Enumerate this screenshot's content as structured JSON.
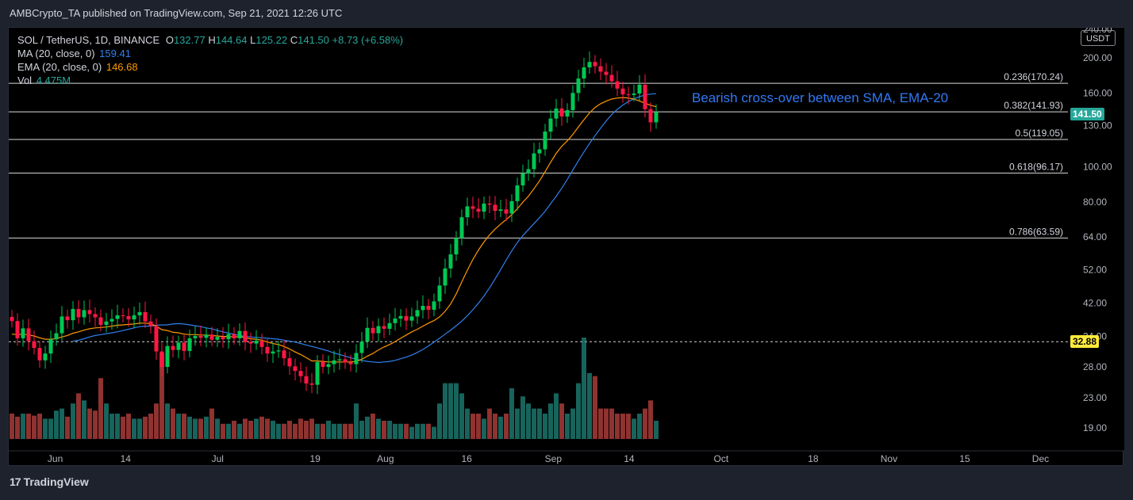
{
  "header": {
    "publisher_line": "AMBCrypto_TA published on TradingView.com, Sep 21, 2021 12:26 UTC"
  },
  "legend": {
    "symbol": "SOL / TetherUS, 1D, BINANCE",
    "o_label": "O",
    "o": "132.77",
    "h_label": "H",
    "h": "144.64",
    "l_label": "L",
    "l": "125.22",
    "c_label": "C",
    "c": "141.50",
    "change": "+8.73 (+6.58%)",
    "ma_label": "MA (20, close, 0)",
    "ma_value": "159.41",
    "ema_label": "EMA (20, close, 0)",
    "ema_value": "146.68",
    "vol_label": "Vol",
    "vol_value": "4.475M"
  },
  "annotation": "Bearish cross-over between SMA, EMA-20",
  "currency_box": "USDT",
  "last_price_tag": "141.50",
  "support_tag": "32.88",
  "footer": {
    "logo": "17",
    "brand": "TradingView"
  },
  "colors": {
    "up": "#26a69a",
    "down": "#ef5350",
    "candle_up": "#00c853",
    "candle_down": "#ff1744",
    "ma": "#2962ff",
    "ema": "#ff9800",
    "annotation": "#3179f5",
    "fib": "#ffffff"
  },
  "chart_data": {
    "type": "candlestick",
    "scale": "log",
    "y_ticks": [
      "240.00",
      "200.00",
      "160.00",
      "130.00",
      "100.00",
      "80.00",
      "64.00",
      "52.00",
      "42.00",
      "34.00",
      "28.00",
      "23.00",
      "19.00"
    ],
    "y_tick_values": [
      240,
      200,
      160,
      130,
      100,
      80,
      64,
      52,
      42,
      34,
      28,
      23,
      19
    ],
    "x_ticks": [
      "Jun",
      "14",
      "Jul",
      "19",
      "Aug",
      "16",
      "Sep",
      "14",
      "Oct",
      "18",
      "Nov",
      "15",
      "Dec"
    ],
    "fib_levels": [
      {
        "label": "0.236(170.24)",
        "value": 170.24
      },
      {
        "label": "0.382(141.93)",
        "value": 141.93
      },
      {
        "label": "0.5(119.05)",
        "value": 119.05
      },
      {
        "label": "0.618(96.17)",
        "value": 96.17
      },
      {
        "label": "0.786(63.59)",
        "value": 63.59
      }
    ],
    "support_line": 32.88,
    "closes": [
      37.5,
      33.6,
      35.8,
      33.0,
      31.6,
      29.2,
      30.5,
      33.4,
      34.7,
      38.6,
      37.7,
      40.5,
      38.4,
      40.2,
      39.2,
      38.4,
      36.6,
      37.4,
      38.0,
      38.9,
      38.7,
      37.9,
      38.9,
      39.7,
      37.4,
      36.3,
      30.9,
      28.0,
      32.0,
      31.2,
      32.7,
      31.0,
      33.6,
      34.1,
      33.7,
      34.4,
      33.3,
      33.9,
      33.4,
      34.5,
      33.6,
      35.2,
      32.8,
      32.5,
      33.1,
      31.8,
      30.5,
      30.9,
      31.1,
      29.6,
      28.1,
      27.3,
      26.4,
      25.2,
      25.0,
      28.9,
      28.0,
      28.5,
      29.2,
      29.4,
      28.8,
      28.5,
      30.6,
      32.9,
      35.9,
      34.7,
      36.3,
      35.7,
      37.0,
      38.1,
      38.7,
      37.6,
      38.6,
      40.2,
      41.3,
      40.3,
      42.5,
      47.0,
      52.4,
      57.3,
      63.6,
      72.6,
      77.8,
      76.6,
      75.2,
      79.2,
      78.6,
      75.6,
      76.3,
      74.3,
      80.4,
      88.9,
      96.0,
      98.6,
      109.0,
      111.8,
      125.2,
      136.0,
      145.0,
      137.8,
      143.5,
      160.1,
      175.5,
      188.4,
      195.0,
      189.8,
      183.3,
      179.5,
      172.4,
      164.6,
      158.6,
      158.0,
      159.5,
      168.7,
      144.4,
      132.8,
      141.5
    ],
    "opens": [
      38.5,
      37.5,
      33.6,
      35.8,
      33.0,
      31.6,
      29.2,
      30.5,
      33.4,
      34.7,
      38.6,
      37.7,
      40.5,
      38.4,
      40.2,
      39.2,
      38.4,
      36.6,
      37.4,
      38.0,
      38.9,
      38.7,
      37.9,
      38.9,
      39.7,
      37.4,
      36.3,
      30.9,
      28.0,
      32.0,
      31.2,
      32.7,
      31.0,
      33.6,
      34.1,
      33.7,
      34.4,
      33.3,
      33.9,
      33.4,
      34.5,
      33.6,
      35.2,
      32.8,
      32.5,
      33.1,
      31.8,
      30.5,
      30.9,
      31.1,
      29.6,
      28.1,
      27.3,
      26.4,
      25.2,
      25.0,
      28.9,
      28.0,
      28.5,
      29.2,
      29.4,
      28.8,
      28.5,
      30.6,
      32.9,
      35.9,
      34.7,
      36.3,
      35.7,
      37.0,
      38.1,
      38.7,
      37.6,
      38.6,
      40.2,
      41.3,
      40.3,
      42.5,
      47.0,
      52.4,
      57.3,
      63.6,
      72.6,
      77.8,
      76.6,
      75.2,
      79.2,
      78.6,
      75.6,
      76.3,
      74.3,
      80.4,
      88.9,
      96.0,
      98.6,
      109.0,
      111.8,
      125.2,
      136.0,
      145.0,
      137.8,
      143.5,
      160.1,
      175.5,
      188.4,
      195.0,
      189.8,
      183.3,
      179.5,
      172.4,
      164.6,
      158.6,
      158.0,
      159.5,
      168.7,
      144.4,
      132.8
    ],
    "volumes": [
      0.25,
      0.22,
      0.25,
      0.25,
      0.23,
      0.25,
      0.2,
      0.2,
      0.28,
      0.3,
      0.22,
      0.35,
      0.45,
      0.38,
      0.3,
      0.28,
      0.6,
      0.35,
      0.25,
      0.25,
      0.22,
      0.25,
      0.2,
      0.2,
      0.22,
      0.25,
      0.35,
      0.85,
      0.35,
      0.3,
      0.25,
      0.25,
      0.22,
      0.2,
      0.2,
      0.22,
      0.3,
      0.2,
      0.15,
      0.15,
      0.18,
      0.15,
      0.2,
      0.18,
      0.2,
      0.22,
      0.2,
      0.18,
      0.15,
      0.15,
      0.18,
      0.15,
      0.2,
      0.18,
      0.2,
      0.15,
      0.15,
      0.18,
      0.15,
      0.15,
      0.15,
      0.15,
      0.35,
      0.18,
      0.22,
      0.25,
      0.2,
      0.18,
      0.18,
      0.15,
      0.15,
      0.15,
      0.12,
      0.15,
      0.15,
      0.15,
      0.12,
      0.35,
      0.55,
      0.55,
      0.55,
      0.45,
      0.3,
      0.25,
      0.25,
      0.2,
      0.3,
      0.25,
      0.22,
      0.25,
      0.5,
      0.3,
      0.42,
      0.35,
      0.3,
      0.3,
      0.25,
      0.35,
      0.45,
      0.35,
      0.25,
      0.3,
      0.55,
      1.0,
      0.65,
      0.62,
      0.3,
      0.3,
      0.3,
      0.25,
      0.25,
      0.25,
      0.2,
      0.25,
      0.3,
      0.38,
      0.18
    ],
    "ma": [
      33.0,
      33.2,
      33.5,
      33.9,
      34.2,
      34.4,
      34.6,
      34.8,
      35.0,
      35.3,
      35.6,
      35.9,
      36.2,
      36.3,
      36.3,
      36.5,
      36.6,
      36.6,
      36.8,
      36.9,
      36.8,
      36.6,
      36.4,
      36.2,
      35.9,
      35.7,
      35.3,
      35.0,
      34.7,
      34.5,
      34.2,
      34.0,
      33.9,
      33.8,
      33.7,
      33.6,
      33.5,
      33.4,
      33.2,
      33.0,
      32.8,
      32.5,
      32.2,
      31.9,
      31.6,
      31.3,
      31.0,
      30.6,
      30.3,
      30.0,
      29.7,
      29.4,
      29.2,
      29.0,
      28.9,
      28.8,
      28.9,
      29.0,
      29.2,
      29.5,
      29.8,
      30.2,
      30.7,
      31.3,
      32.0,
      32.8,
      33.6,
      34.5,
      35.4,
      36.4,
      37.5,
      38.8,
      40.3,
      42.0,
      44.0,
      46.3,
      49.0,
      52.0,
      55.3,
      58.6,
      61.8,
      64.6,
      67.1,
      69.7,
      72.4,
      75.4,
      79.1,
      83.0,
      87.3,
      92.3,
      98.0,
      104.0,
      110.0,
      116.0,
      122.0,
      128.0,
      134.0,
      139.5,
      144.2,
      148.2,
      151.5,
      154.2,
      156.4,
      158.0,
      159.0,
      159.4
    ],
    "ema": [
      34.5,
      34.4,
      34.5,
      34.3,
      34.1,
      33.7,
      33.4,
      33.4,
      33.5,
      33.9,
      34.2,
      34.7,
      35.0,
      35.4,
      35.7,
      35.9,
      36.0,
      36.1,
      36.3,
      36.5,
      36.6,
      36.7,
      36.8,
      37.0,
      37.0,
      36.9,
      36.3,
      35.5,
      35.3,
      34.9,
      34.8,
      34.5,
      34.4,
      34.4,
      34.3,
      34.3,
      34.2,
      34.1,
      34.0,
      34.0,
      33.9,
      34.0,
      33.7,
      33.5,
      33.4,
      33.2,
      32.8,
      32.5,
      32.3,
      31.9,
      31.4,
      30.8,
      30.3,
      29.7,
      29.1,
      29.1,
      29.0,
      28.9,
      28.9,
      28.9,
      28.9,
      28.9,
      29.0,
      29.4,
      30.0,
      30.5,
      31.2,
      31.8,
      32.3,
      32.9,
      33.6,
      34.3,
      35.0,
      35.6,
      36.3,
      37.0,
      37.6,
      38.5,
      39.9,
      41.8,
      44.6,
      48.1,
      51.8,
      55.5,
      58.9,
      62.0,
      64.9,
      67.3,
      69.5,
      71.5,
      73.8,
      76.6,
      79.9,
      83.0,
      87.0,
      91.5,
      97.0,
      103.0,
      109.0,
      114.0,
      118.0,
      123.0,
      129.0,
      135.0,
      141.0,
      146.0,
      149.5,
      152.0,
      154.0,
      155.0,
      155.5,
      155.0,
      154.0,
      152.0,
      150.0,
      148.0,
      146.68
    ]
  }
}
